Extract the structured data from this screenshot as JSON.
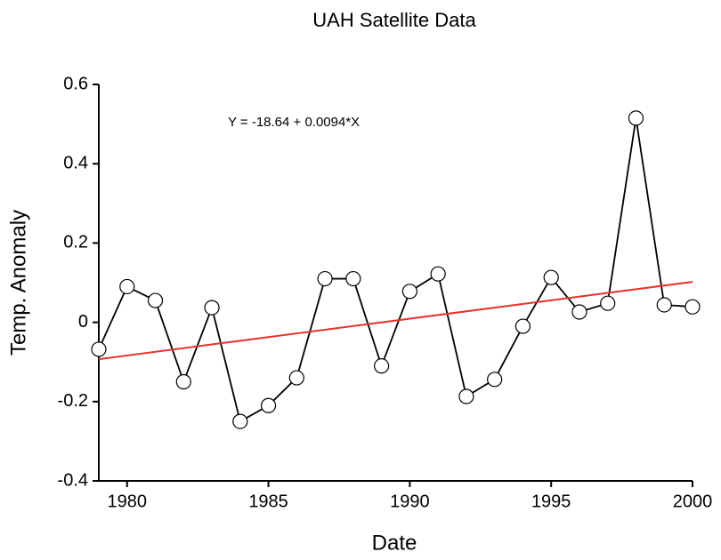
{
  "chart_data": {
    "type": "line",
    "title": "UAH Satellite Data",
    "xlabel": "Date",
    "ylabel": "Temp. Anomaly",
    "annotation": "Y = -18.64 + 0.0094*X",
    "x": [
      1979,
      1980,
      1981,
      1982,
      1983,
      1984,
      1985,
      1986,
      1987,
      1988,
      1989,
      1990,
      1991,
      1992,
      1993,
      1994,
      1995,
      1996,
      1997,
      1998,
      1999,
      2000
    ],
    "values": [
      -0.068,
      0.09,
      0.055,
      -0.15,
      0.037,
      -0.25,
      -0.21,
      -0.14,
      0.11,
      0.11,
      -0.11,
      0.078,
      0.122,
      -0.187,
      -0.144,
      -0.01,
      0.113,
      0.026,
      0.048,
      0.515,
      0.044,
      0.039
    ],
    "color": "#000000",
    "trend_line": {
      "x": [
        1979,
        2000
      ],
      "values": [
        -0.093,
        0.102
      ],
      "color": "#e8322a"
    },
    "xlim": [
      1979,
      2000
    ],
    "xticks": [
      1980,
      1985,
      1990,
      1995,
      2000
    ],
    "ylim": [
      -0.4,
      0.6
    ],
    "yticks": [
      -0.4,
      -0.2,
      0,
      0.2,
      0.4,
      0.6
    ]
  }
}
